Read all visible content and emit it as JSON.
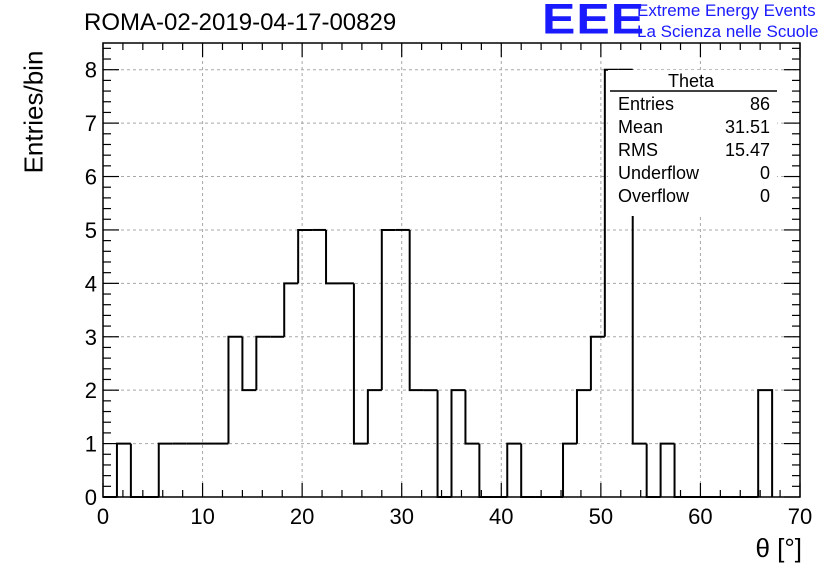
{
  "title": "ROMA-02-2019-04-17-00829",
  "logo": {
    "text": "EEE",
    "line1": "Extreme Energy Events",
    "line2": "La Scienza nelle Scuole",
    "color": "#1a1aff"
  },
  "stats": {
    "title": "Theta",
    "rows": [
      {
        "key": "Entries",
        "value": "86"
      },
      {
        "key": "Mean",
        "value": "31.51"
      },
      {
        "key": "RMS",
        "value": "15.47"
      },
      {
        "key": "Underflow",
        "value": "0"
      },
      {
        "key": "Overflow",
        "value": "0"
      }
    ]
  },
  "chart_data": {
    "type": "bar",
    "style": "step-histogram",
    "xlabel": "θ [°]",
    "ylabel": "Entries/bin",
    "xlim": [
      0,
      70
    ],
    "ylim": [
      0,
      8.5
    ],
    "xticks": [
      0,
      10,
      20,
      30,
      40,
      50,
      60,
      70
    ],
    "yticks": [
      0,
      1,
      2,
      3,
      4,
      5,
      6,
      7,
      8
    ],
    "grid": true,
    "bin_edges": [
      0,
      1.4,
      2.8,
      4.2,
      5.6,
      7.0,
      8.4,
      9.8,
      11.2,
      12.6,
      14.0,
      15.4,
      16.8,
      18.2,
      19.6,
      21.0,
      22.4,
      23.8,
      25.2,
      26.6,
      28.0,
      29.4,
      30.8,
      32.2,
      33.6,
      35.0,
      36.4,
      37.8,
      39.2,
      40.6,
      42.0,
      43.4,
      44.8,
      46.2,
      47.6,
      49.0,
      50.4,
      51.8,
      53.2,
      54.6,
      56.0,
      57.4,
      58.8,
      60.2,
      61.6,
      63.0,
      64.4,
      65.8,
      67.2
    ],
    "counts": [
      0,
      1,
      0,
      0,
      1,
      1,
      1,
      1,
      1,
      3,
      2,
      3,
      3,
      4,
      5,
      5,
      4,
      4,
      1,
      2,
      5,
      5,
      2,
      2,
      0,
      2,
      1,
      0,
      0,
      1,
      0,
      0,
      0,
      1,
      2,
      3,
      8,
      8,
      1,
      0,
      1,
      0,
      0,
      0,
      0,
      0,
      0,
      2
    ],
    "line_color": "#000000"
  }
}
